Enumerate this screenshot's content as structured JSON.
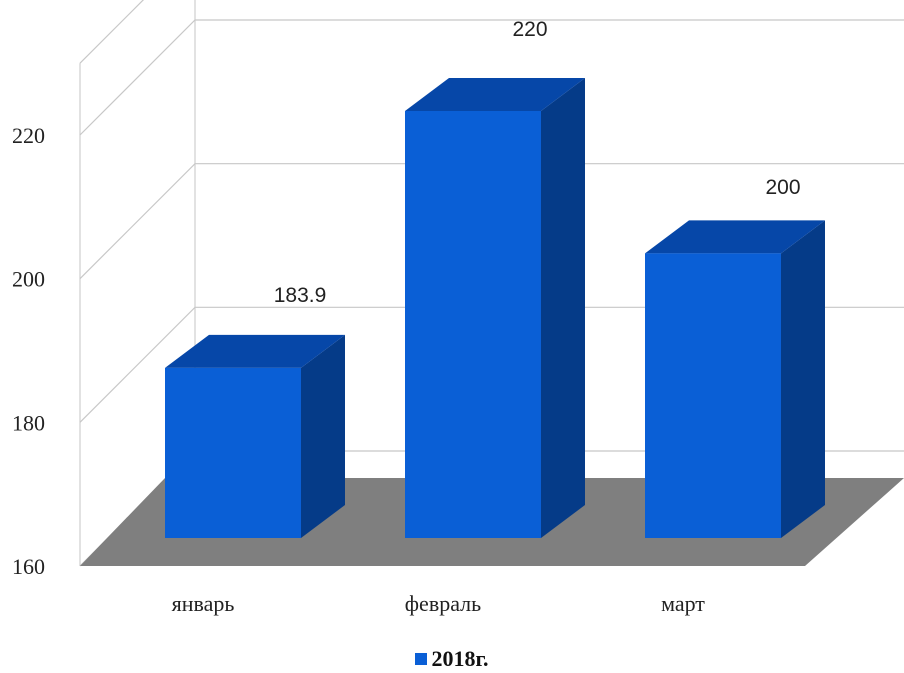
{
  "chart_data": {
    "type": "bar",
    "style": "3d-column",
    "categories": [
      "январь",
      "февраль",
      "март"
    ],
    "series": [
      {
        "name": "2018г.",
        "values": [
          183.9,
          220,
          200
        ],
        "color": "#0a5fd6"
      }
    ],
    "data_labels": [
      "183.9",
      "220",
      "200"
    ],
    "yticks": [
      160,
      180,
      200,
      220
    ],
    "ylim": [
      160,
      230
    ],
    "grid": true,
    "legend_position": "bottom",
    "floor_color": "#7f7f7f",
    "title": "",
    "xlabel": "",
    "ylabel": ""
  }
}
